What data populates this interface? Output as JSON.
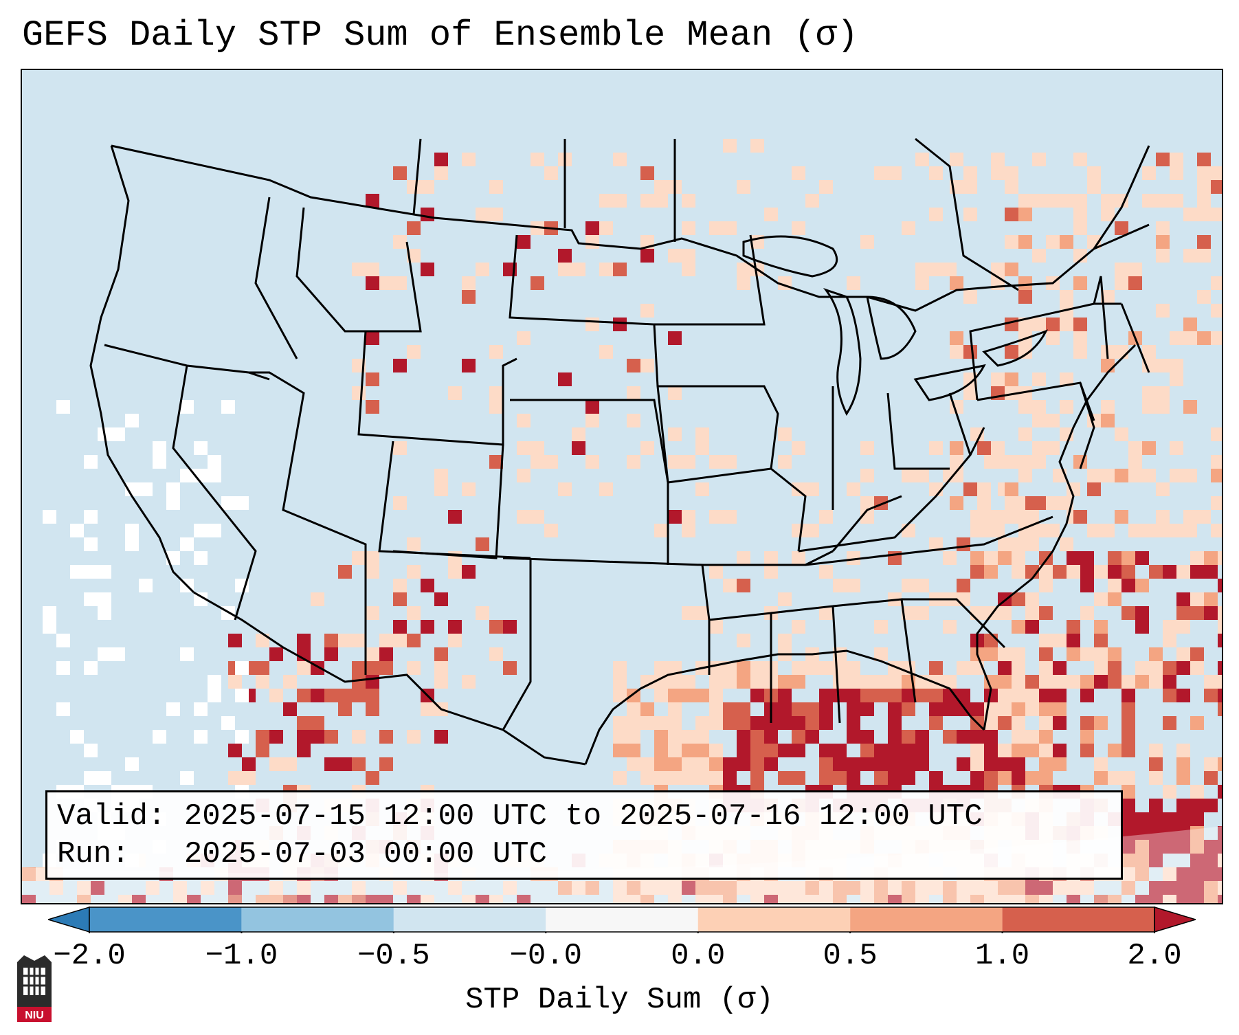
{
  "title": "GEFS Daily STP Sum of Ensemble Mean (σ)",
  "info": {
    "valid_label": "Valid:",
    "valid_value": "2025-07-15 12:00 UTC to 2025-07-16 12:00 UTC",
    "run_label": "Run:",
    "run_value": "2025-07-03 00:00 UTC"
  },
  "colorbar": {
    "label": "STP Daily Sum (σ)",
    "ticks": [
      "−2.0",
      "−1.0",
      "−0.5",
      "−0.0",
      "0.0",
      "0.5",
      "1.0",
      "2.0"
    ],
    "colors": [
      "#2c7bb6",
      "#4a94c8",
      "#93c4e0",
      "#d1e5f0",
      "#f7f7f7",
      "#fdd0b5",
      "#f4a582",
      "#d6604d",
      "#b2182b"
    ],
    "extend": "both"
  },
  "map": {
    "background_color": "#d1e5f0",
    "outside_color": "#ffffff",
    "border_color": "#000000",
    "region": "Contiguous United States",
    "anomaly_categories": [
      {
        "range": "0.0 to 0.5",
        "color": "#fddbc7"
      },
      {
        "range": "0.5 to 1.0",
        "color": "#f4a582"
      },
      {
        "range": "1.0 to 2.0",
        "color": "#d6604d"
      },
      {
        "range": "> 2.0",
        "color": "#b2182b"
      }
    ]
  },
  "logo": {
    "text": "NIU",
    "icon": "niu-logo-icon"
  }
}
